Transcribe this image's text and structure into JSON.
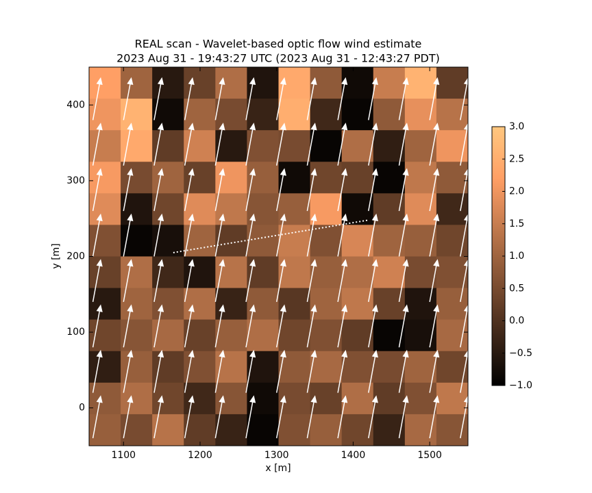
{
  "chart_data": {
    "type": "heatmap",
    "title": "REAL scan - Wavelet-based optic flow wind estimate",
    "subtitle": "2023 Aug 31 - 19:43:27 UTC (2023 Aug 31 - 12:43:27 PDT)",
    "xlabel": "x [m]",
    "ylabel": "y [m]",
    "xlim": [
      1055,
      1550
    ],
    "ylim": [
      -50,
      450
    ],
    "xticks": [
      1100,
      1200,
      1300,
      1400,
      1500
    ],
    "yticks": [
      0,
      100,
      200,
      300,
      400
    ],
    "colormap": "copper",
    "clim": [
      -1,
      3
    ],
    "cticks": [
      {
        "value": -1.0,
        "label": "−1.0"
      },
      {
        "value": -0.5,
        "label": "−0.5"
      },
      {
        "value": 0.0,
        "label": "0.0"
      },
      0.5,
      {
        "value": 1.0,
        "label": "1.0"
      },
      1.5,
      {
        "value": 2.0,
        "label": "2.0"
      },
      2.5,
      {
        "value": 3.0,
        "label": "3.0"
      }
    ],
    "z": [
      [
        2.2,
        1.0,
        -0.5,
        0.3,
        1.2,
        -0.6,
        2.4,
        0.8,
        -0.8,
        1.5,
        2.6,
        0.2
      ],
      [
        2.0,
        2.6,
        -0.8,
        1.0,
        0.5,
        -0.3,
        2.5,
        -0.2,
        -0.9,
        0.8,
        1.9,
        1.3
      ],
      [
        1.5,
        2.4,
        0.2,
        1.6,
        -0.5,
        0.6,
        0.5,
        -0.9,
        1.2,
        -0.4,
        1.0,
        2.0
      ],
      [
        2.1,
        0.5,
        1.0,
        0.3,
        2.0,
        0.9,
        -0.8,
        0.4,
        0.3,
        -0.9,
        1.4,
        0.8
      ],
      [
        1.8,
        -0.6,
        0.4,
        1.8,
        1.4,
        0.7,
        0.9,
        2.1,
        -0.8,
        0.2,
        1.8,
        -0.2
      ],
      [
        0.6,
        -0.9,
        -0.7,
        1.0,
        0.2,
        0.8,
        1.5,
        0.6,
        1.7,
        1.0,
        0.9,
        0.4
      ],
      [
        0.3,
        1.2,
        -0.2,
        -0.6,
        1.3,
        0.2,
        1.4,
        0.9,
        1.2,
        1.6,
        0.5,
        0.6
      ],
      [
        -0.5,
        1.0,
        0.6,
        1.2,
        -0.3,
        0.8,
        0.1,
        1.0,
        1.4,
        0.3,
        -0.6,
        0.9
      ],
      [
        0.4,
        0.7,
        1.1,
        0.3,
        0.9,
        1.2,
        0.4,
        0.6,
        0.2,
        -0.9,
        -0.7,
        1.1
      ],
      [
        -0.4,
        0.9,
        0.2,
        0.6,
        1.3,
        -0.6,
        0.8,
        1.1,
        0.6,
        0.5,
        1.0,
        0.4
      ],
      [
        0.8,
        1.2,
        0.4,
        -0.2,
        0.7,
        -0.8,
        0.5,
        0.3,
        1.2,
        0.2,
        0.6,
        1.4
      ],
      [
        0.9,
        0.5,
        1.3,
        0.2,
        -0.3,
        -0.9,
        0.6,
        0.9,
        0.4,
        -0.3,
        1.1,
        0.7
      ]
    ],
    "quiver": {
      "x": [
        1060,
        1100,
        1140,
        1180,
        1220,
        1260,
        1300,
        1340,
        1380,
        1420,
        1460,
        1500,
        1540
      ],
      "y": [
        -40,
        20,
        80,
        140,
        200,
        260,
        320,
        380
      ],
      "u": 10,
      "v": 55,
      "color": "#ffffff"
    },
    "track": {
      "x": [
        1165,
        1420
      ],
      "y": [
        205,
        248
      ],
      "color": "#ffffff"
    }
  }
}
